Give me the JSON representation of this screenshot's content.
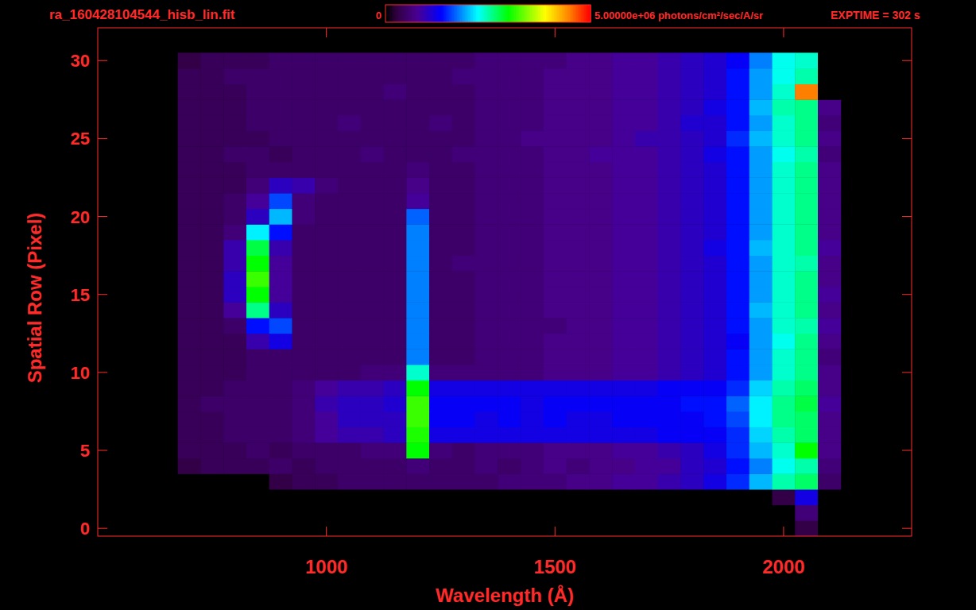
{
  "chart_data": {
    "type": "heatmap",
    "title": "ra_160428104544_hisb_lin.fit",
    "annotations": [
      "EXPTIME = 302 s"
    ],
    "x_label": "Wavelength (Å)",
    "y_label": "Spatial Row (Pixel)",
    "xlim": [
      500,
      2280
    ],
    "ylim": [
      -0.5,
      32.1
    ],
    "xticks": [
      1000,
      1500,
      2000
    ],
    "yticks": [
      0,
      5,
      10,
      15,
      20,
      25,
      30
    ],
    "colorbar": {
      "range": [
        0,
        5000000
      ],
      "ticks": [
        0,
        {
          "value": 5000000,
          "label": "5.00000e+06 photons/cm²/sec/A/sr"
        }
      ]
    },
    "x_bins": [
      675,
      725,
      775,
      825,
      875,
      925,
      975,
      1025,
      1075,
      1125,
      1175,
      1225,
      1275,
      1325,
      1375,
      1425,
      1475,
      1525,
      1575,
      1625,
      1675,
      1725,
      1775,
      1825,
      1875,
      1925,
      1975,
      2025,
      2075,
      2125
    ],
    "y": [
      0,
      1,
      2,
      3,
      4,
      5,
      6,
      7,
      8,
      9,
      10,
      11,
      12,
      13,
      14,
      15,
      16,
      17,
      18,
      19,
      20,
      21,
      22,
      23,
      24,
      25,
      26,
      27,
      28,
      29,
      30
    ],
    "cells": [
      [
        0,
        0,
        0,
        0,
        0,
        0,
        0,
        0,
        0,
        0,
        0,
        0,
        0,
        0,
        0,
        0,
        0,
        0,
        0,
        0,
        0,
        0,
        0,
        0,
        0,
        0,
        0,
        300000,
        0
      ],
      [
        0,
        0,
        0,
        0,
        0,
        0,
        0,
        0,
        0,
        0,
        0,
        0,
        0,
        0,
        0,
        0,
        0,
        0,
        0,
        0,
        0,
        0,
        0,
        0,
        0,
        0,
        0,
        600000,
        0
      ],
      [
        0,
        0,
        0,
        0,
        0,
        0,
        0,
        0,
        0,
        0,
        0,
        0,
        0,
        0,
        0,
        0,
        0,
        0,
        0,
        0,
        0,
        0,
        0,
        0,
        0,
        0,
        300000,
        1200000,
        0
      ],
      [
        0,
        0,
        0,
        0,
        300000,
        400000,
        400000,
        500000,
        500000,
        500000,
        500000,
        500000,
        500000,
        500000,
        600000,
        600000,
        600000,
        700000,
        700000,
        800000,
        800000,
        900000,
        1000000,
        1200000,
        1500000,
        2000000,
        2500000,
        2700000,
        500000
      ],
      [
        300000,
        400000,
        400000,
        400000,
        500000,
        400000,
        500000,
        500000,
        500000,
        500000,
        600000,
        500000,
        500000,
        600000,
        500000,
        600000,
        700000,
        600000,
        700000,
        700000,
        800000,
        800000,
        1000000,
        1100000,
        1400000,
        1800000,
        2300000,
        2500000,
        600000
      ],
      [
        400000,
        400000,
        400000,
        500000,
        400000,
        500000,
        500000,
        500000,
        600000,
        600000,
        3000000,
        600000,
        500000,
        600000,
        600000,
        600000,
        700000,
        700000,
        700000,
        800000,
        800000,
        900000,
        1000000,
        1200000,
        1500000,
        2000000,
        2400000,
        3000000,
        700000
      ],
      [
        400000,
        400000,
        500000,
        500000,
        500000,
        600000,
        800000,
        900000,
        900000,
        1000000,
        3100000,
        1200000,
        1200000,
        1200000,
        1200000,
        1200000,
        1200000,
        1200000,
        1200000,
        1200000,
        1200000,
        1300000,
        1300000,
        1300000,
        1500000,
        2100000,
        2500000,
        2700000,
        700000
      ],
      [
        400000,
        400000,
        500000,
        500000,
        500000,
        600000,
        800000,
        1000000,
        1000000,
        1000000,
        3200000,
        1300000,
        1300000,
        1200000,
        1300000,
        1200000,
        1300000,
        1200000,
        1200000,
        1300000,
        1300000,
        1300000,
        1300000,
        1400000,
        1600000,
        2200000,
        2600000,
        2700000,
        700000
      ],
      [
        400000,
        500000,
        500000,
        500000,
        500000,
        600000,
        900000,
        1000000,
        1000000,
        1100000,
        3200000,
        1300000,
        1300000,
        1300000,
        1300000,
        1200000,
        1300000,
        1300000,
        1300000,
        1300000,
        1300000,
        1300000,
        1400000,
        1400000,
        1700000,
        2200000,
        2600000,
        2800000,
        800000
      ],
      [
        400000,
        400000,
        500000,
        500000,
        500000,
        600000,
        800000,
        900000,
        900000,
        1000000,
        3000000,
        1200000,
        1200000,
        1200000,
        1200000,
        1200000,
        1200000,
        1200000,
        1200000,
        1200000,
        1200000,
        1300000,
        1300000,
        1300000,
        1500000,
        2100000,
        2500000,
        2700000,
        700000
      ],
      [
        400000,
        400000,
        400000,
        500000,
        500000,
        500000,
        500000,
        500000,
        600000,
        600000,
        2400000,
        600000,
        600000,
        600000,
        600000,
        600000,
        700000,
        700000,
        700000,
        800000,
        800000,
        900000,
        1000000,
        1100000,
        1400000,
        1900000,
        2400000,
        2600000,
        700000
      ],
      [
        400000,
        400000,
        400000,
        500000,
        500000,
        500000,
        500000,
        500000,
        500000,
        500000,
        1800000,
        500000,
        500000,
        600000,
        600000,
        600000,
        700000,
        700000,
        700000,
        800000,
        800000,
        900000,
        1000000,
        1100000,
        1400000,
        1900000,
        2400000,
        2600000,
        600000
      ],
      [
        400000,
        400000,
        400000,
        900000,
        1200000,
        500000,
        500000,
        500000,
        500000,
        500000,
        1800000,
        500000,
        500000,
        600000,
        600000,
        600000,
        700000,
        700000,
        700000,
        800000,
        800000,
        900000,
        1000000,
        1100000,
        1300000,
        1900000,
        2300000,
        2600000,
        700000
      ],
      [
        400000,
        400000,
        500000,
        1400000,
        1600000,
        500000,
        500000,
        500000,
        500000,
        500000,
        1800000,
        500000,
        500000,
        600000,
        600000,
        600000,
        600000,
        700000,
        700000,
        800000,
        800000,
        900000,
        1000000,
        1100000,
        1400000,
        1900000,
        2400000,
        2500000,
        800000
      ],
      [
        400000,
        400000,
        800000,
        2600000,
        1000000,
        500000,
        500000,
        500000,
        500000,
        500000,
        1800000,
        500000,
        500000,
        600000,
        600000,
        600000,
        700000,
        700000,
        700000,
        800000,
        800000,
        900000,
        1000000,
        1100000,
        1400000,
        2000000,
        2400000,
        2600000,
        700000
      ],
      [
        400000,
        400000,
        1000000,
        3000000,
        800000,
        500000,
        500000,
        500000,
        500000,
        500000,
        1800000,
        500000,
        500000,
        600000,
        600000,
        600000,
        700000,
        700000,
        700000,
        800000,
        800000,
        900000,
        1000000,
        1100000,
        1400000,
        1900000,
        2400000,
        2600000,
        800000
      ],
      [
        400000,
        400000,
        1000000,
        3200000,
        800000,
        500000,
        500000,
        500000,
        500000,
        500000,
        1800000,
        500000,
        500000,
        600000,
        600000,
        600000,
        700000,
        700000,
        700000,
        800000,
        800000,
        900000,
        1000000,
        1100000,
        1400000,
        1900000,
        2400000,
        2600000,
        700000
      ],
      [
        400000,
        400000,
        900000,
        3000000,
        800000,
        500000,
        500000,
        500000,
        500000,
        500000,
        1800000,
        500000,
        600000,
        600000,
        600000,
        600000,
        700000,
        700000,
        700000,
        800000,
        800000,
        900000,
        1000000,
        1100000,
        1400000,
        1900000,
        2400000,
        2500000,
        700000
      ],
      [
        400000,
        400000,
        900000,
        2800000,
        900000,
        500000,
        500000,
        500000,
        500000,
        500000,
        1800000,
        500000,
        500000,
        600000,
        600000,
        600000,
        700000,
        700000,
        700000,
        800000,
        800000,
        900000,
        1000000,
        1200000,
        1400000,
        2000000,
        2400000,
        2600000,
        800000
      ],
      [
        400000,
        400000,
        600000,
        2200000,
        1400000,
        500000,
        500000,
        500000,
        500000,
        500000,
        1800000,
        500000,
        500000,
        600000,
        600000,
        600000,
        700000,
        700000,
        700000,
        800000,
        800000,
        900000,
        1000000,
        1100000,
        1400000,
        1900000,
        2400000,
        2600000,
        700000
      ],
      [
        400000,
        400000,
        500000,
        1000000,
        2000000,
        600000,
        500000,
        500000,
        500000,
        500000,
        1700000,
        500000,
        500000,
        600000,
        600000,
        600000,
        700000,
        700000,
        700000,
        800000,
        800000,
        900000,
        1000000,
        1100000,
        1400000,
        1900000,
        2400000,
        2600000,
        700000
      ],
      [
        400000,
        400000,
        500000,
        800000,
        1600000,
        600000,
        500000,
        500000,
        500000,
        500000,
        800000,
        500000,
        500000,
        600000,
        600000,
        600000,
        700000,
        700000,
        700000,
        800000,
        800000,
        900000,
        1000000,
        1100000,
        1400000,
        1900000,
        2400000,
        2600000,
        700000
      ],
      [
        400000,
        400000,
        400000,
        600000,
        1000000,
        900000,
        600000,
        500000,
        500000,
        500000,
        700000,
        500000,
        500000,
        600000,
        600000,
        600000,
        700000,
        700000,
        700000,
        800000,
        800000,
        900000,
        1000000,
        1100000,
        1400000,
        1900000,
        2400000,
        2600000,
        700000
      ],
      [
        400000,
        400000,
        400000,
        500000,
        500000,
        500000,
        500000,
        500000,
        500000,
        500000,
        600000,
        500000,
        500000,
        600000,
        600000,
        600000,
        700000,
        700000,
        700000,
        800000,
        800000,
        900000,
        1000000,
        1100000,
        1400000,
        1900000,
        2400000,
        2600000,
        700000
      ],
      [
        400000,
        400000,
        500000,
        500000,
        400000,
        500000,
        500000,
        500000,
        600000,
        500000,
        500000,
        500000,
        600000,
        600000,
        600000,
        600000,
        700000,
        700000,
        800000,
        800000,
        800000,
        900000,
        1000000,
        1200000,
        1400000,
        1900000,
        2300000,
        2500000,
        600000
      ],
      [
        400000,
        400000,
        400000,
        400000,
        500000,
        500000,
        500000,
        500000,
        500000,
        500000,
        500000,
        500000,
        500000,
        600000,
        600000,
        700000,
        700000,
        700000,
        700000,
        800000,
        900000,
        900000,
        1000000,
        1100000,
        1500000,
        2000000,
        2400000,
        2600000,
        700000
      ],
      [
        400000,
        400000,
        400000,
        500000,
        500000,
        500000,
        500000,
        600000,
        500000,
        500000,
        500000,
        600000,
        500000,
        600000,
        600000,
        600000,
        700000,
        700000,
        700000,
        800000,
        800000,
        900000,
        1100000,
        1100000,
        1400000,
        1900000,
        2400000,
        2600000,
        600000
      ],
      [
        400000,
        400000,
        400000,
        500000,
        500000,
        500000,
        500000,
        500000,
        500000,
        500000,
        500000,
        500000,
        500000,
        600000,
        600000,
        600000,
        700000,
        700000,
        700000,
        800000,
        800000,
        900000,
        1000000,
        1200000,
        1400000,
        2000000,
        2500000,
        2600000,
        700000
      ],
      [
        400000,
        400000,
        400000,
        500000,
        500000,
        500000,
        500000,
        500000,
        500000,
        600000,
        500000,
        500000,
        500000,
        600000,
        600000,
        600000,
        700000,
        700000,
        700000,
        800000,
        800000,
        900000,
        1000000,
        1100000,
        1400000,
        1900000,
        2400000,
        4500000,
        0
      ],
      [
        400000,
        400000,
        500000,
        500000,
        500000,
        500000,
        500000,
        500000,
        500000,
        500000,
        500000,
        500000,
        600000,
        600000,
        600000,
        600000,
        700000,
        700000,
        700000,
        800000,
        800000,
        900000,
        1000000,
        1100000,
        1400000,
        1900000,
        2300000,
        2500000,
        0
      ],
      [
        300000,
        400000,
        400000,
        400000,
        500000,
        500000,
        500000,
        500000,
        500000,
        500000,
        500000,
        500000,
        500000,
        600000,
        600000,
        600000,
        600000,
        700000,
        700000,
        800000,
        800000,
        900000,
        1000000,
        1100000,
        1300000,
        1800000,
        2300000,
        2400000,
        0
      ]
    ]
  }
}
